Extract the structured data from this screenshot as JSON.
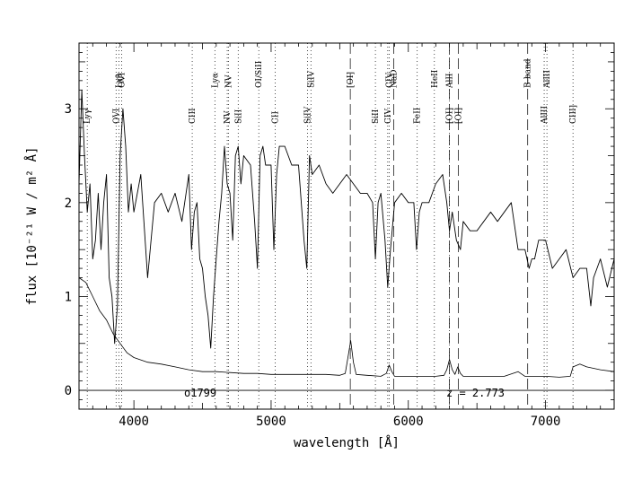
{
  "chart_data": {
    "type": "line",
    "title": "",
    "xlabel": "wavelength [Å]",
    "ylabel": "flux [10⁻²¹ W / m² Å]",
    "xlim": [
      3600,
      7500
    ],
    "ylim": [
      -0.2,
      3.7
    ],
    "x_ticks": [
      4000,
      5000,
      6000,
      7000
    ],
    "y_ticks": [
      0,
      1,
      2,
      3
    ],
    "grid": false,
    "legend": "none",
    "annotations": {
      "object": "o1799",
      "redshift": "z = 2.773"
    },
    "series": [
      {
        "name": "",
        "style": "spectrum",
        "x": [
          3600,
          3620,
          3640,
          3660,
          3680,
          3700,
          3720,
          3740,
          3760,
          3780,
          3800,
          3820,
          3840,
          3860,
          3880,
          3900,
          3920,
          3940,
          3960,
          3980,
          4000,
          4050,
          4100,
          4150,
          4200,
          4250,
          4300,
          4350,
          4400,
          4420,
          4440,
          4460,
          4480,
          4500,
          4520,
          4540,
          4560,
          4580,
          4600,
          4620,
          4640,
          4660,
          4680,
          4700,
          4720,
          4740,
          4760,
          4780,
          4800,
          4850,
          4880,
          4900,
          4920,
          4940,
          4960,
          5000,
          5020,
          5040,
          5060,
          5100,
          5150,
          5200,
          5240,
          5260,
          5280,
          5300,
          5350,
          5400,
          5450,
          5500,
          5550,
          5600,
          5650,
          5700,
          5740,
          5760,
          5780,
          5800,
          5830,
          5850,
          5870,
          5900,
          5950,
          6000,
          6040,
          6060,
          6080,
          6100,
          6150,
          6200,
          6250,
          6280,
          6300,
          6320,
          6350,
          6380,
          6400,
          6450,
          6500,
          6550,
          6600,
          6650,
          6700,
          6750,
          6800,
          6850,
          6880,
          6900,
          6920,
          6950,
          7000,
          7050,
          7100,
          7150,
          7200,
          7250,
          7300,
          7330,
          7350,
          7400,
          7450,
          7500
        ],
        "y": [
          2.2,
          3.2,
          2.5,
          1.9,
          2.2,
          1.4,
          1.6,
          2.1,
          1.5,
          2.0,
          2.3,
          1.2,
          1.0,
          0.5,
          0.9,
          2.5,
          3.0,
          2.6,
          1.9,
          2.2,
          1.9,
          2.3,
          1.2,
          2.0,
          2.1,
          1.9,
          2.1,
          1.8,
          2.3,
          1.5,
          1.9,
          2.0,
          1.4,
          1.3,
          1.0,
          0.8,
          0.45,
          1.0,
          1.4,
          1.8,
          2.1,
          2.6,
          2.2,
          2.1,
          1.6,
          2.5,
          2.6,
          2.2,
          2.5,
          2.4,
          1.8,
          1.3,
          2.5,
          2.6,
          2.4,
          2.4,
          1.5,
          2.3,
          2.6,
          2.6,
          2.4,
          2.4,
          1.6,
          1.3,
          2.5,
          2.3,
          2.4,
          2.2,
          2.1,
          2.2,
          2.3,
          2.2,
          2.1,
          2.1,
          2.0,
          1.4,
          2.0,
          2.1,
          1.6,
          1.1,
          1.5,
          2.0,
          2.1,
          2.0,
          2.0,
          1.5,
          1.9,
          2.0,
          2.0,
          2.2,
          2.3,
          2.0,
          1.7,
          1.9,
          1.6,
          1.5,
          1.8,
          1.7,
          1.7,
          1.8,
          1.9,
          1.8,
          1.9,
          2.0,
          1.5,
          1.5,
          1.3,
          1.4,
          1.4,
          1.6,
          1.6,
          1.3,
          1.4,
          1.5,
          1.2,
          1.3,
          1.3,
          0.9,
          1.2,
          1.4,
          1.1,
          1.4
        ]
      },
      {
        "name": "",
        "style": "continuum",
        "x": [
          3600,
          3650,
          3700,
          3750,
          3800,
          3850,
          3900,
          3950,
          4000,
          4100,
          4200,
          4300,
          4400,
          4500,
          4600,
          4700,
          4800,
          4900,
          5000,
          5100,
          5200,
          5300,
          5400,
          5500,
          5540,
          5560,
          5580,
          5600,
          5620,
          5700,
          5800,
          5840,
          5860,
          5880,
          5900,
          6000,
          6100,
          6200,
          6260,
          6280,
          6300,
          6320,
          6340,
          6360,
          6380,
          6400,
          6500,
          6600,
          6700,
          6800,
          6850,
          6900,
          7000,
          7100,
          7180,
          7200,
          7250,
          7300,
          7400,
          7500
        ],
        "y": [
          1.2,
          1.15,
          1.0,
          0.85,
          0.75,
          0.6,
          0.5,
          0.4,
          0.35,
          0.3,
          0.28,
          0.25,
          0.22,
          0.2,
          0.2,
          0.19,
          0.18,
          0.18,
          0.17,
          0.17,
          0.17,
          0.17,
          0.17,
          0.16,
          0.18,
          0.35,
          0.53,
          0.3,
          0.17,
          0.16,
          0.15,
          0.18,
          0.27,
          0.2,
          0.15,
          0.15,
          0.15,
          0.15,
          0.16,
          0.22,
          0.33,
          0.22,
          0.17,
          0.25,
          0.18,
          0.15,
          0.15,
          0.15,
          0.15,
          0.2,
          0.15,
          0.15,
          0.15,
          0.14,
          0.15,
          0.25,
          0.28,
          0.25,
          0.22,
          0.2
        ]
      }
    ],
    "lines_dotted": [
      {
        "x": 3660,
        "label": "Lyγ",
        "row": "mid"
      },
      {
        "x": 3870,
        "label": "OVI",
        "row": "mid"
      },
      {
        "x": 3890,
        "label": "Lyβ",
        "row": "top"
      },
      {
        "x": 3910,
        "label": "OVI",
        "row": "top"
      },
      {
        "x": 4425,
        "label": "CIII",
        "row": "mid"
      },
      {
        "x": 4590,
        "label": "Lyα",
        "row": "top"
      },
      {
        "x": 4680,
        "label": "NV",
        "row": "mid"
      },
      {
        "x": 4690,
        "label": "NV",
        "row": "top"
      },
      {
        "x": 4760,
        "label": "SiII",
        "row": "mid"
      },
      {
        "x": 4910,
        "label": "OI/SiII",
        "row": "top"
      },
      {
        "x": 5030,
        "label": "CII",
        "row": "mid"
      },
      {
        "x": 5265,
        "label": "SiIV",
        "row": "mid"
      },
      {
        "x": 5290,
        "label": "SiIV",
        "row": "top"
      },
      {
        "x": 5760,
        "label": "SiII",
        "row": "mid"
      },
      {
        "x": 5850,
        "label": "CIV",
        "row": "mid"
      },
      {
        "x": 5860,
        "label": "CIV",
        "row": "top"
      },
      {
        "x": 6065,
        "label": "FeII",
        "row": "mid"
      },
      {
        "x": 6190,
        "label": "HeII",
        "row": "top"
      },
      {
        "x": 6300,
        "label": "AlII",
        "row": "top"
      },
      {
        "x": 6990,
        "label": "AlIII",
        "row": "mid"
      },
      {
        "x": 7010,
        "label": "AlIII",
        "row": "top"
      },
      {
        "x": 7200,
        "label": "CIII]",
        "row": "mid"
      }
    ],
    "lines_dashed": [
      {
        "x": 5577,
        "label": "[OI]",
        "row": "top"
      },
      {
        "x": 5893,
        "label": "NaD",
        "row": "top"
      },
      {
        "x": 6300,
        "label": "[OI]",
        "row": "mid"
      },
      {
        "x": 6364,
        "label": "[OI]",
        "row": "mid"
      },
      {
        "x": 6870,
        "label": "B-band",
        "row": "top"
      }
    ]
  }
}
